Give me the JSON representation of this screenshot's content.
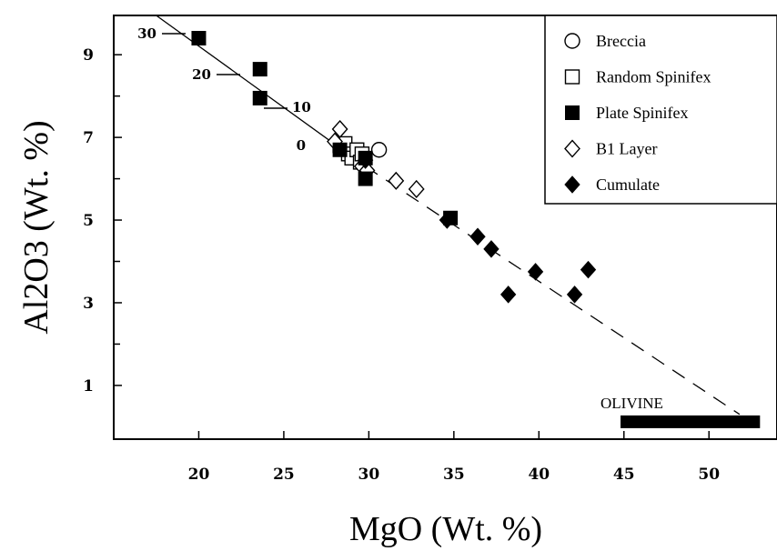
{
  "chart_data": {
    "type": "scatter",
    "xlabel": "MgO  (Wt. %)",
    "ylabel": "Al2O3 (Wt. %)",
    "xlim": [
      15,
      54
    ],
    "ylim": [
      -0.3,
      9.95
    ],
    "x_ticks": [
      20,
      25,
      30,
      35,
      40,
      45,
      50
    ],
    "y_ticks_labeled": [
      1,
      3,
      5,
      7,
      9
    ],
    "y_ticks_minor": [
      2,
      4,
      6,
      8
    ],
    "legend_position": "top-right",
    "series": [
      {
        "name": "Breccia",
        "marker": "open-circle",
        "x": [
          30.6
        ],
        "y": [
          6.7
        ]
      },
      {
        "name": "Random Spinifex",
        "marker": "open-square",
        "x": [
          28.3,
          28.6,
          28.8,
          29.0,
          29.3,
          29.5,
          29.6
        ],
        "y": [
          6.8,
          6.85,
          6.6,
          6.5,
          6.7,
          6.4,
          6.6
        ]
      },
      {
        "name": "Plate Spinifex",
        "marker": "filled-square",
        "x": [
          20.0,
          23.6,
          23.6,
          28.3,
          29.8,
          29.8,
          34.8
        ],
        "y": [
          9.4,
          8.65,
          7.95,
          6.7,
          6.5,
          6.0,
          5.05
        ]
      },
      {
        "name": "B1 Layer",
        "marker": "open-diamond",
        "x": [
          28.0,
          28.3,
          29.6,
          29.9,
          31.6,
          32.8
        ],
        "y": [
          6.9,
          7.2,
          6.3,
          6.2,
          5.95,
          5.75
        ]
      },
      {
        "name": "Cumulate",
        "marker": "filled-diamond",
        "x": [
          29.8,
          34.6,
          36.4,
          37.2,
          38.2,
          39.8,
          42.1,
          42.9
        ],
        "y": [
          6.45,
          5.0,
          4.6,
          4.3,
          3.2,
          3.75,
          3.2,
          3.8
        ]
      }
    ],
    "solid_trend_line": {
      "x": [
        17.5,
        29.8
      ],
      "y": [
        9.95,
        6.3
      ]
    },
    "dashed_trend_line": {
      "x": [
        29.8,
        51.8
      ],
      "y": [
        6.3,
        0.3
      ]
    },
    "trend_annotations": [
      {
        "text": "30",
        "x": 20.0,
        "y": 9.4
      },
      {
        "text": "20",
        "x": 23.6,
        "y": 8.65
      },
      {
        "text": "10",
        "x": 25.2,
        "y": 7.9
      },
      {
        "text": "0",
        "x": 27.7,
        "y": 6.95
      }
    ],
    "olivine_bar": {
      "label": "OLIVINE",
      "x_range": [
        44.8,
        53.0
      ],
      "y": 0.12
    }
  }
}
